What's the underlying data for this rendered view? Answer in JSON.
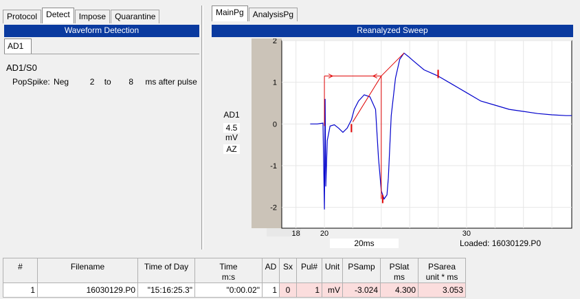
{
  "left_tabs": [
    "Protocol",
    "Detect",
    "Impose",
    "Quarantine"
  ],
  "left_active": "Detect",
  "right_tabs": [
    "MainPg",
    "AnalysisPg"
  ],
  "waveform_title": "Waveform Detection",
  "reanalyzed_title": "Reanalyzed Sweep",
  "subtab": "AD1",
  "channel_label": "AD1/S0",
  "popspike": {
    "label": "PopSpike:",
    "polarity": "Neg",
    "from": "2",
    "to_label": "to",
    "to": "8",
    "suffix": "ms after pulse"
  },
  "plot_side": {
    "channel": "AD1",
    "scale": "4.5",
    "unit": "mV",
    "az": "AZ"
  },
  "chart_data": {
    "type": "line",
    "xlim": [
      17,
      37.4
    ],
    "ylim": [
      -2.5,
      2
    ],
    "y_ticks": [
      "2",
      "1",
      "0",
      "-1",
      "-2"
    ],
    "y_tick_values": [
      2,
      1,
      0,
      -1,
      -2
    ],
    "x_tick_labels": [
      "18",
      "20",
      "30"
    ],
    "x_tick_values": [
      18,
      20,
      30
    ],
    "x_label": "20ms",
    "loaded_label": "Loaded: 16030129.P0",
    "trace_color": "#0000cc",
    "marker_color": "#e00000",
    "series": [
      {
        "x": [
          19.0,
          19.5,
          19.9,
          20.0,
          20.05,
          20.1,
          20.2,
          20.4,
          20.7,
          21.0,
          21.3,
          21.6,
          21.9,
          22.1,
          22.4,
          22.8,
          23.2,
          23.6,
          23.8,
          24.0,
          24.2,
          24.4,
          24.5,
          24.7,
          25.0,
          25.3,
          25.6,
          25.9,
          26.3,
          27.0,
          28.0,
          29.0,
          30.0,
          31.0,
          32.0,
          33.0,
          34.0,
          35.0,
          36.0,
          37.0,
          37.4
        ],
        "y": [
          0.0,
          0.0,
          0.02,
          -2.05,
          0.6,
          -1.5,
          -0.4,
          -0.05,
          -0.02,
          -0.1,
          -0.2,
          -0.1,
          0.1,
          0.35,
          0.55,
          0.7,
          0.65,
          0.35,
          -0.8,
          -1.6,
          -1.8,
          -1.7,
          -1.3,
          0.2,
          1.1,
          1.55,
          1.7,
          1.62,
          1.5,
          1.3,
          1.15,
          0.95,
          0.75,
          0.55,
          0.45,
          0.35,
          0.3,
          0.25,
          0.22,
          0.2,
          0.2
        ]
      }
    ],
    "markers": [
      21.9,
      24.1,
      28.0
    ]
  },
  "table": {
    "headers": [
      "#",
      "Filename",
      "Time of Day",
      "Time\nm:s",
      "AD",
      "Sx",
      "Pul#",
      "Unit",
      "PSamp",
      "PSlat\nms",
      "PSarea\nunit * ms"
    ],
    "rows": [
      [
        "1",
        "16030129.P0",
        "\"15:16:25.3\"",
        "\"0:00.02\"",
        "1",
        "0",
        "1",
        "mV",
        "-3.024",
        "4.300",
        "3.053"
      ]
    ]
  }
}
